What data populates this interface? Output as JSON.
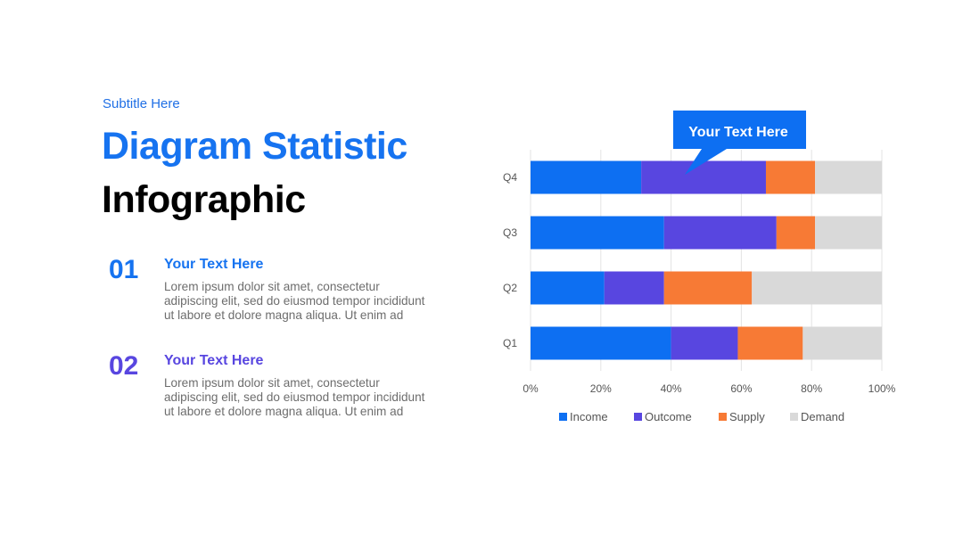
{
  "header": {
    "subtitle": "Subtitle Here",
    "title_line1": "Diagram Statistic",
    "title_line2": "Infographic"
  },
  "items": [
    {
      "number": "01",
      "heading": "Your Text Here",
      "body_lines": [
        "Lorem ipsum dolor sit amet, consectetur",
        "adipiscing elit, sed do eiusmod tempor incididunt",
        "ut labore et dolore magna aliqua. Ut enim ad"
      ],
      "color": "#1673f0"
    },
    {
      "number": "02",
      "heading": "Your Text Here",
      "body_lines": [
        "Lorem ipsum dolor sit amet, consectetur",
        "adipiscing elit, sed do eiusmod tempor incididunt",
        "ut labore et dolore magna aliqua. Ut enim ad"
      ],
      "color": "#5846e0"
    }
  ],
  "callout": {
    "text": "Your Text Here",
    "color": "#0d6ff2"
  },
  "chart_data": {
    "type": "bar",
    "orientation": "horizontal",
    "stacked": "percent",
    "categories": [
      "Q4",
      "Q3",
      "Q2",
      "Q1"
    ],
    "series": [
      {
        "name": "Income",
        "color": "#0d6ff2",
        "values": [
          31.5,
          38,
          21,
          40
        ]
      },
      {
        "name": "Outcome",
        "color": "#5846e0",
        "values": [
          35.5,
          32,
          17,
          19
        ]
      },
      {
        "name": "Supply",
        "color": "#f77a35",
        "values": [
          14,
          11,
          25,
          18.5
        ]
      },
      {
        "name": "Demand",
        "color": "#d9d9d9",
        "values": [
          19,
          19,
          37,
          22.5
        ]
      }
    ],
    "xlim": [
      0,
      100
    ],
    "xticks": [
      "0%",
      "20%",
      "40%",
      "60%",
      "80%",
      "100%"
    ],
    "grid": true,
    "legend_position": "bottom"
  }
}
